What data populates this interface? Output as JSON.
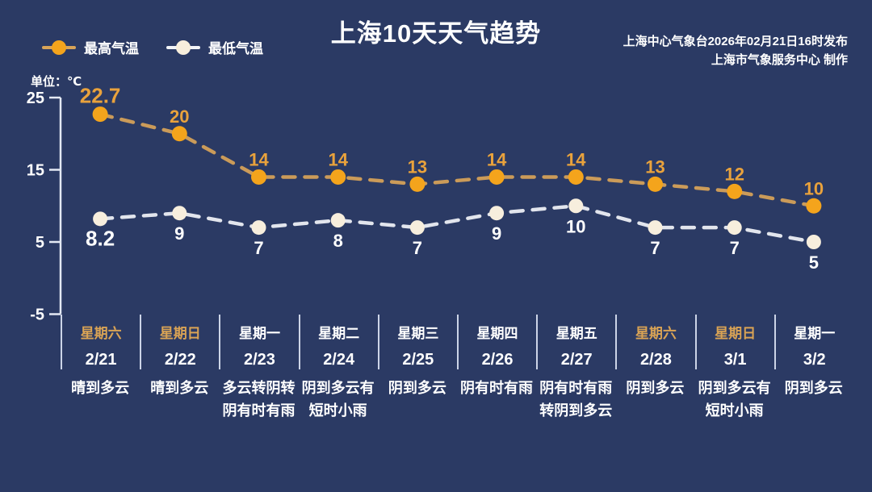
{
  "title": "上海10天天气趋势",
  "attribution": {
    "line1": "上海中心气象台2026年02月21日16时发布",
    "line2": "上海市气象服务中心  制作"
  },
  "unit_label": "单位：℃",
  "legend": [
    {
      "label": "最高气温",
      "marker_color": "#f4a41c",
      "line_color": "#d9a458"
    },
    {
      "label": "最低气温",
      "marker_color": "#f7eedd",
      "line_color": "#f2f4f8"
    }
  ],
  "chart_data": {
    "type": "line",
    "x": [
      "2/21",
      "2/22",
      "2/23",
      "2/24",
      "2/25",
      "2/26",
      "2/27",
      "2/28",
      "3/1",
      "3/2"
    ],
    "series": [
      {
        "name": "最高气温",
        "values": [
          22.7,
          20,
          14,
          14,
          13,
          14,
          14,
          13,
          12,
          10
        ],
        "labels": [
          "22.7",
          "20",
          "14",
          "14",
          "13",
          "14",
          "14",
          "13",
          "12",
          "10"
        ],
        "marker_color": "#f4a41c",
        "line_color": "#d9a458",
        "label_color": "#e9a23c"
      },
      {
        "name": "最低气温",
        "values": [
          8.2,
          9,
          7,
          8,
          7,
          9,
          10,
          7,
          7,
          5
        ],
        "labels": [
          "8.2",
          "9",
          "7",
          "8",
          "7",
          "9",
          "10",
          "7",
          "7",
          "5"
        ],
        "marker_color": "#f7eedd",
        "line_color": "#f2f4f8",
        "label_color": "#ffffff"
      }
    ],
    "title": "上海10天天气趋势",
    "ylabel": "单位：℃",
    "yticks": [
      25,
      15,
      5,
      -5
    ],
    "ylim": [
      -5,
      25
    ],
    "grid": false,
    "line_style": "dashed",
    "legend_position": "top-left"
  },
  "days": [
    {
      "week": "星期六",
      "weekend": true,
      "date": "2/21",
      "weather": [
        "晴到多云"
      ]
    },
    {
      "week": "星期日",
      "weekend": true,
      "date": "2/22",
      "weather": [
        "晴到多云"
      ]
    },
    {
      "week": "星期一",
      "weekend": false,
      "date": "2/23",
      "weather": [
        "多云转阴转",
        "阴有时有雨"
      ]
    },
    {
      "week": "星期二",
      "weekend": false,
      "date": "2/24",
      "weather": [
        "阴到多云有",
        "短时小雨"
      ]
    },
    {
      "week": "星期三",
      "weekend": false,
      "date": "2/25",
      "weather": [
        "阴到多云"
      ]
    },
    {
      "week": "星期四",
      "weekend": false,
      "date": "2/26",
      "weather": [
        "阴有时有雨"
      ]
    },
    {
      "week": "星期五",
      "weekend": false,
      "date": "2/27",
      "weather": [
        "阴有时有雨",
        "转阴到多云"
      ]
    },
    {
      "week": "星期六",
      "weekend": true,
      "date": "2/28",
      "weather": [
        "阴到多云"
      ]
    },
    {
      "week": "星期日",
      "weekend": true,
      "date": "3/1",
      "weather": [
        "阴到多云有",
        "短时小雨"
      ]
    },
    {
      "week": "星期一",
      "weekend": false,
      "date": "3/2",
      "weather": [
        "阴到多云"
      ]
    }
  ],
  "colors": {
    "background": "#2b3a64",
    "axis": "#e4e9f4",
    "weekend_text": "#d9a355",
    "weekday_text": "#ffffff"
  }
}
